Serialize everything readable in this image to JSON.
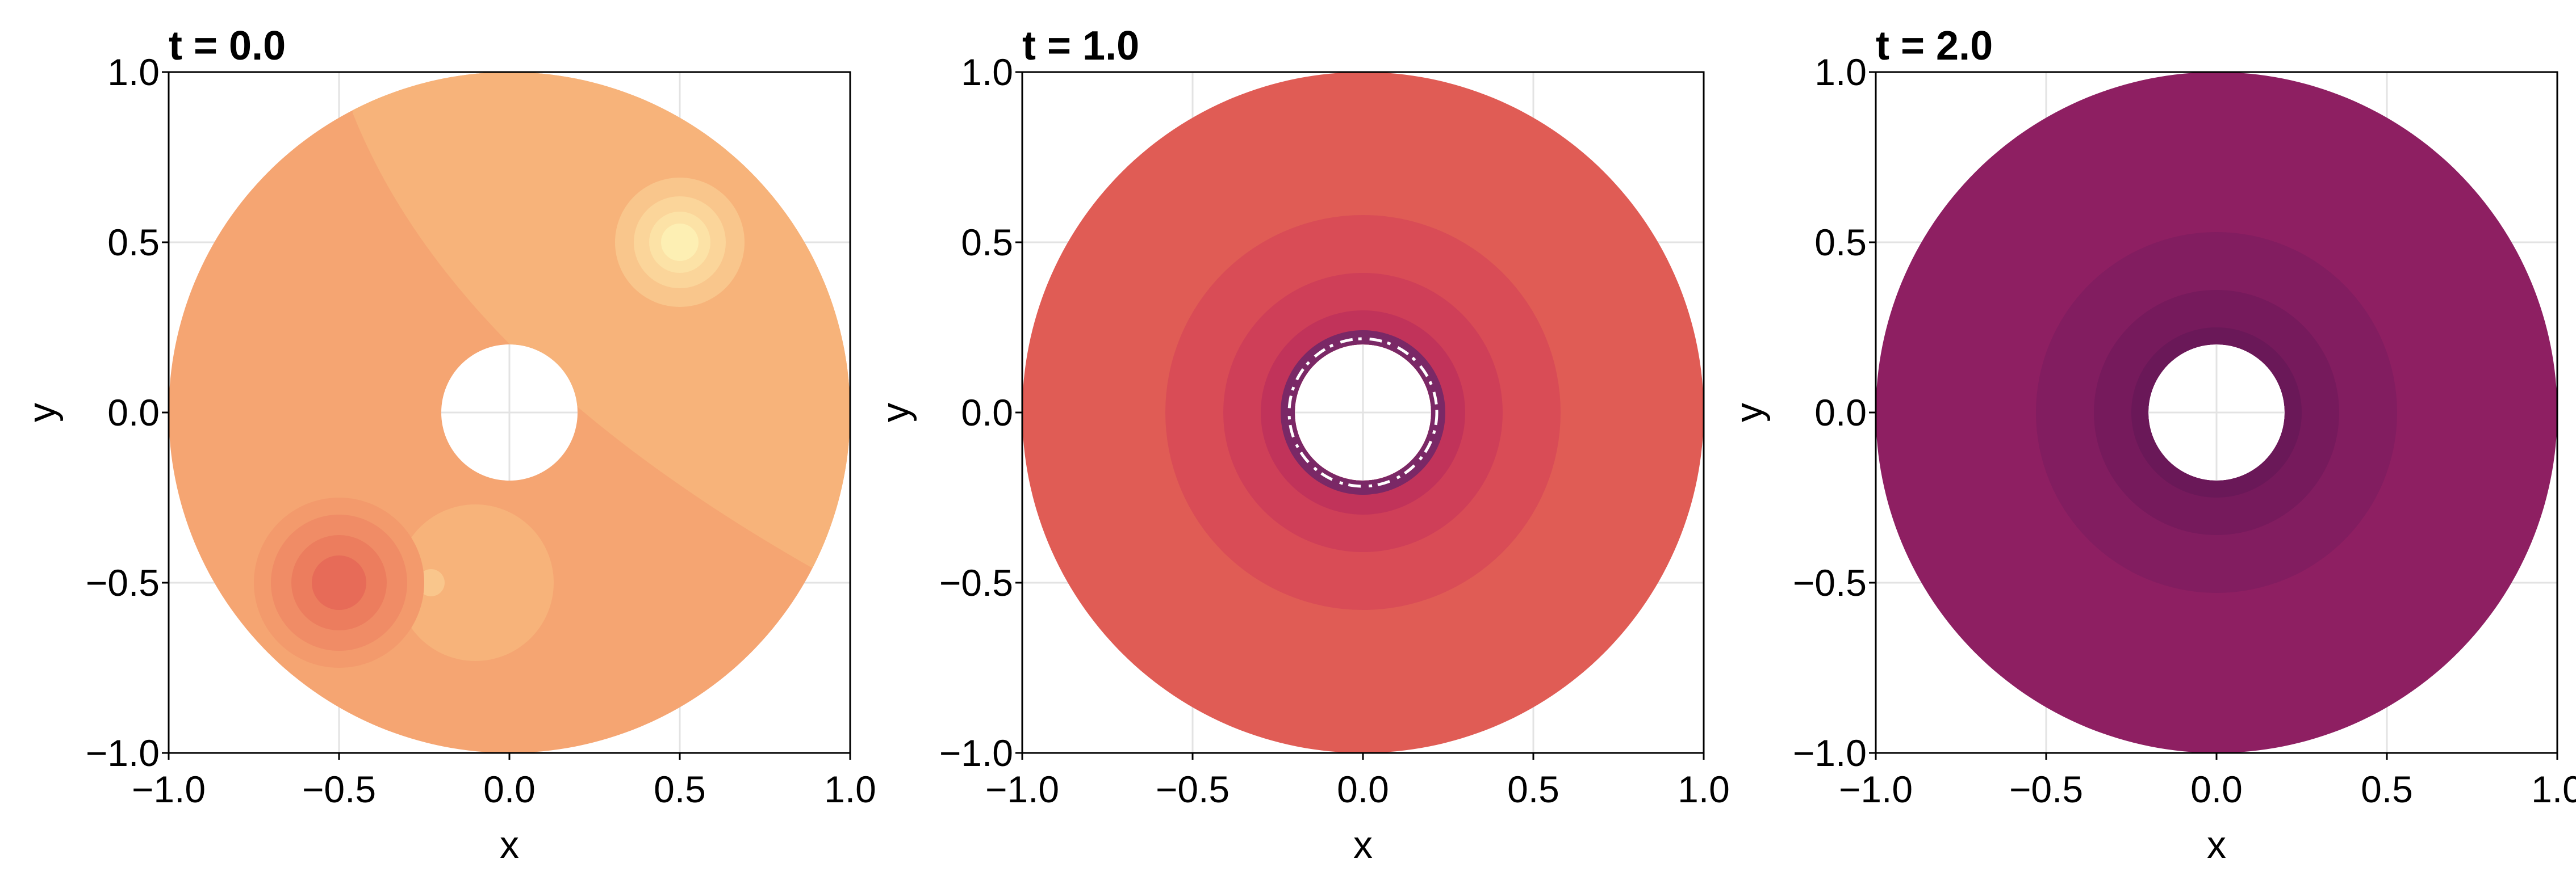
{
  "chart_data": [
    {
      "type": "contour",
      "title": "t = 0.0",
      "xlabel": "x",
      "ylabel": "y",
      "xlim": [
        -1.0,
        1.0
      ],
      "ylim": [
        -1.0,
        1.0
      ],
      "xticks": [
        "−1.0",
        "−0.5",
        "0.0",
        "0.5",
        "1.0"
      ],
      "yticks": [
        "−1.0",
        "−0.5",
        "0.0",
        "0.5",
        "1.0"
      ],
      "grid": true,
      "domain": {
        "inner_radius": 0.2,
        "outer_radius": 1.0
      },
      "background_color": "#f5a572",
      "regions": [
        {
          "shape": "band",
          "color": "#f7b37a",
          "description": "lighter upper-right region bounded by a curved level line"
        },
        {
          "shape": "disk",
          "cx": 0.5,
          "cy": 0.5,
          "r": 0.19,
          "color": "#f9c68c"
        },
        {
          "shape": "disk",
          "cx": 0.5,
          "cy": 0.5,
          "r": 0.135,
          "color": "#fbd59a"
        },
        {
          "shape": "disk",
          "cx": 0.5,
          "cy": 0.5,
          "r": 0.09,
          "color": "#fce2a6"
        },
        {
          "shape": "disk",
          "cx": 0.5,
          "cy": 0.5,
          "r": 0.055,
          "color": "#fdefb3"
        },
        {
          "shape": "disk",
          "cx": -0.1,
          "cy": -0.5,
          "r": 0.23,
          "color": "#f7b37a"
        },
        {
          "shape": "disk",
          "cx": -0.23,
          "cy": -0.5,
          "r": 0.04,
          "color": "#f9c68c"
        },
        {
          "shape": "disk",
          "cx": -0.5,
          "cy": -0.5,
          "r": 0.25,
          "color": "#f39a6c"
        },
        {
          "shape": "disk",
          "cx": -0.5,
          "cy": -0.5,
          "r": 0.2,
          "color": "#f08c66"
        },
        {
          "shape": "disk",
          "cx": -0.5,
          "cy": -0.5,
          "r": 0.14,
          "color": "#ec7d5e"
        },
        {
          "shape": "disk",
          "cx": -0.5,
          "cy": -0.5,
          "r": 0.08,
          "color": "#e76b58"
        }
      ]
    },
    {
      "type": "contour",
      "title": "t = 1.0",
      "xlabel": "x",
      "ylabel": "y",
      "xlim": [
        -1.0,
        1.0
      ],
      "ylim": [
        -1.0,
        1.0
      ],
      "xticks": [
        "−1.0",
        "−0.5",
        "0.0",
        "0.5",
        "1.0"
      ],
      "yticks": [
        "−1.0",
        "−0.5",
        "0.0",
        "0.5",
        "1.0"
      ],
      "grid": true,
      "domain": {
        "inner_radius": 0.2,
        "outer_radius": 1.0
      },
      "background_color": "#e05c55",
      "regions": [
        {
          "shape": "disk",
          "cx": 0.0,
          "cy": 0.0,
          "r": 0.58,
          "color": "#d94c56"
        },
        {
          "shape": "disk",
          "cx": 0.0,
          "cy": 0.0,
          "r": 0.41,
          "color": "#cf3f58"
        },
        {
          "shape": "disk",
          "cx": 0.0,
          "cy": 0.0,
          "r": 0.3,
          "color": "#c1335a"
        },
        {
          "shape": "ring",
          "cx": 0.0,
          "cy": 0.0,
          "r": 0.22,
          "color": "#7a2866",
          "description": "thin noisy ring next to the hole"
        }
      ]
    },
    {
      "type": "contour",
      "title": "t = 2.0",
      "xlabel": "x",
      "ylabel": "y",
      "xlim": [
        -1.0,
        1.0
      ],
      "ylim": [
        -1.0,
        1.0
      ],
      "xticks": [
        "−1.0",
        "−0.5",
        "0.0",
        "0.5",
        "1.0"
      ],
      "yticks": [
        "−1.0",
        "−0.5",
        "0.0",
        "0.5",
        "1.0"
      ],
      "grid": true,
      "domain": {
        "inner_radius": 0.2,
        "outer_radius": 1.0
      },
      "background_color": "#8e1f62",
      "regions": [
        {
          "shape": "disk",
          "cx": 0.0,
          "cy": 0.0,
          "r": 0.53,
          "color": "#821d60"
        },
        {
          "shape": "disk",
          "cx": 0.0,
          "cy": 0.0,
          "r": 0.36,
          "color": "#761a5c"
        },
        {
          "shape": "disk",
          "cx": 0.0,
          "cy": 0.0,
          "r": 0.25,
          "color": "#6a1858"
        }
      ]
    }
  ]
}
